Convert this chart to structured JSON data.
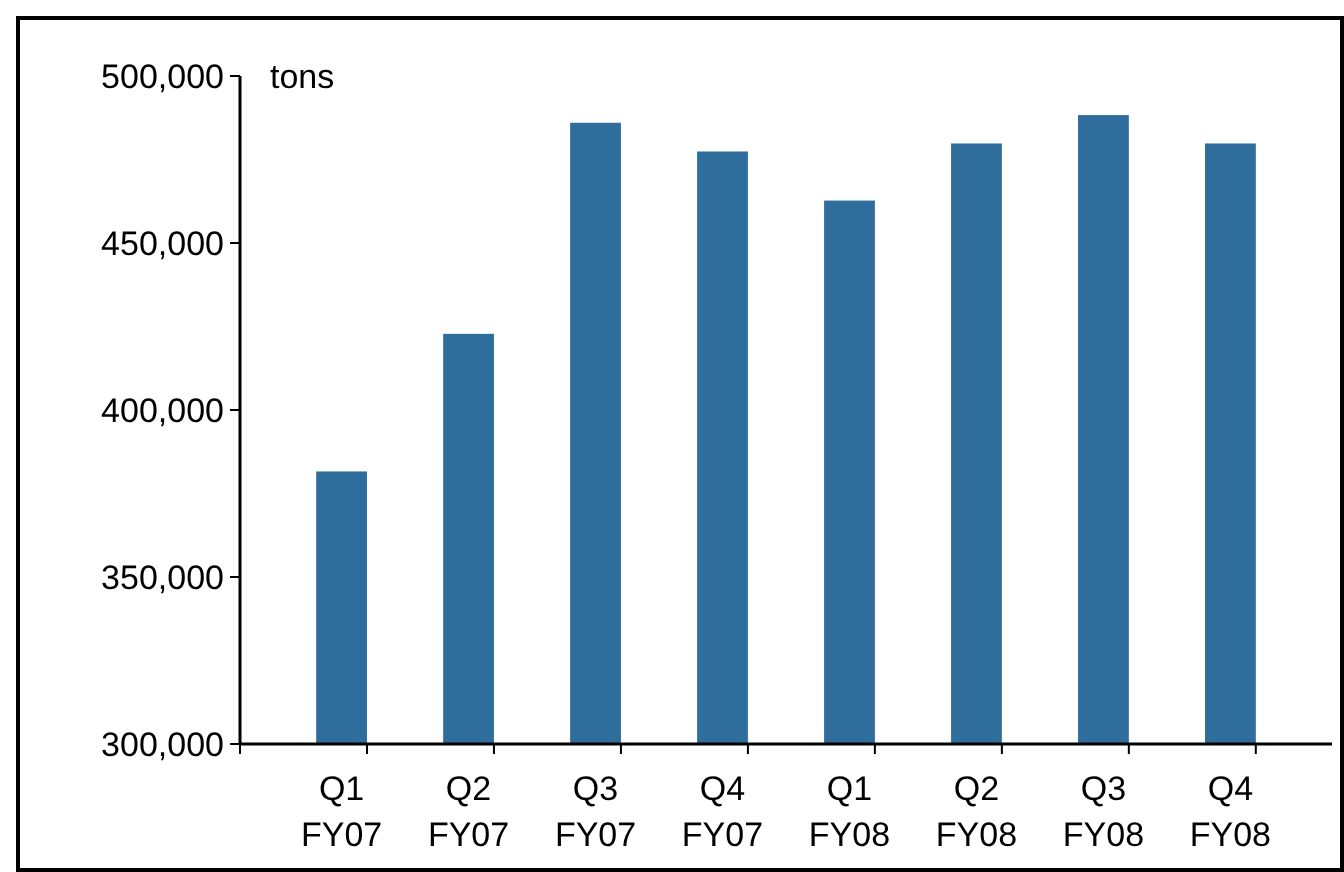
{
  "chart_data": {
    "type": "bar",
    "ylabel": "tons",
    "categories": [
      "Q1\nFY07",
      "Q2\nFY07",
      "Q3\nFY07",
      "Q4\nFY07",
      "Q1\nFY08",
      "Q2\nFY08",
      "Q3\nFY08",
      "Q4\nFY08"
    ],
    "values": [
      381600,
      422800,
      486000,
      477400,
      462700,
      479800,
      488300,
      479800
    ],
    "color": "#2e6d9c",
    "ylim": [
      300000,
      500000
    ],
    "yticks": [
      {
        "value": 300000,
        "label": "300,000"
      },
      {
        "value": 350000,
        "label": "350,000"
      },
      {
        "value": 400000,
        "label": "400,000"
      },
      {
        "value": 450000,
        "label": "450,000"
      },
      {
        "value": 500000,
        "label": "500,000"
      }
    ],
    "grid": false
  }
}
